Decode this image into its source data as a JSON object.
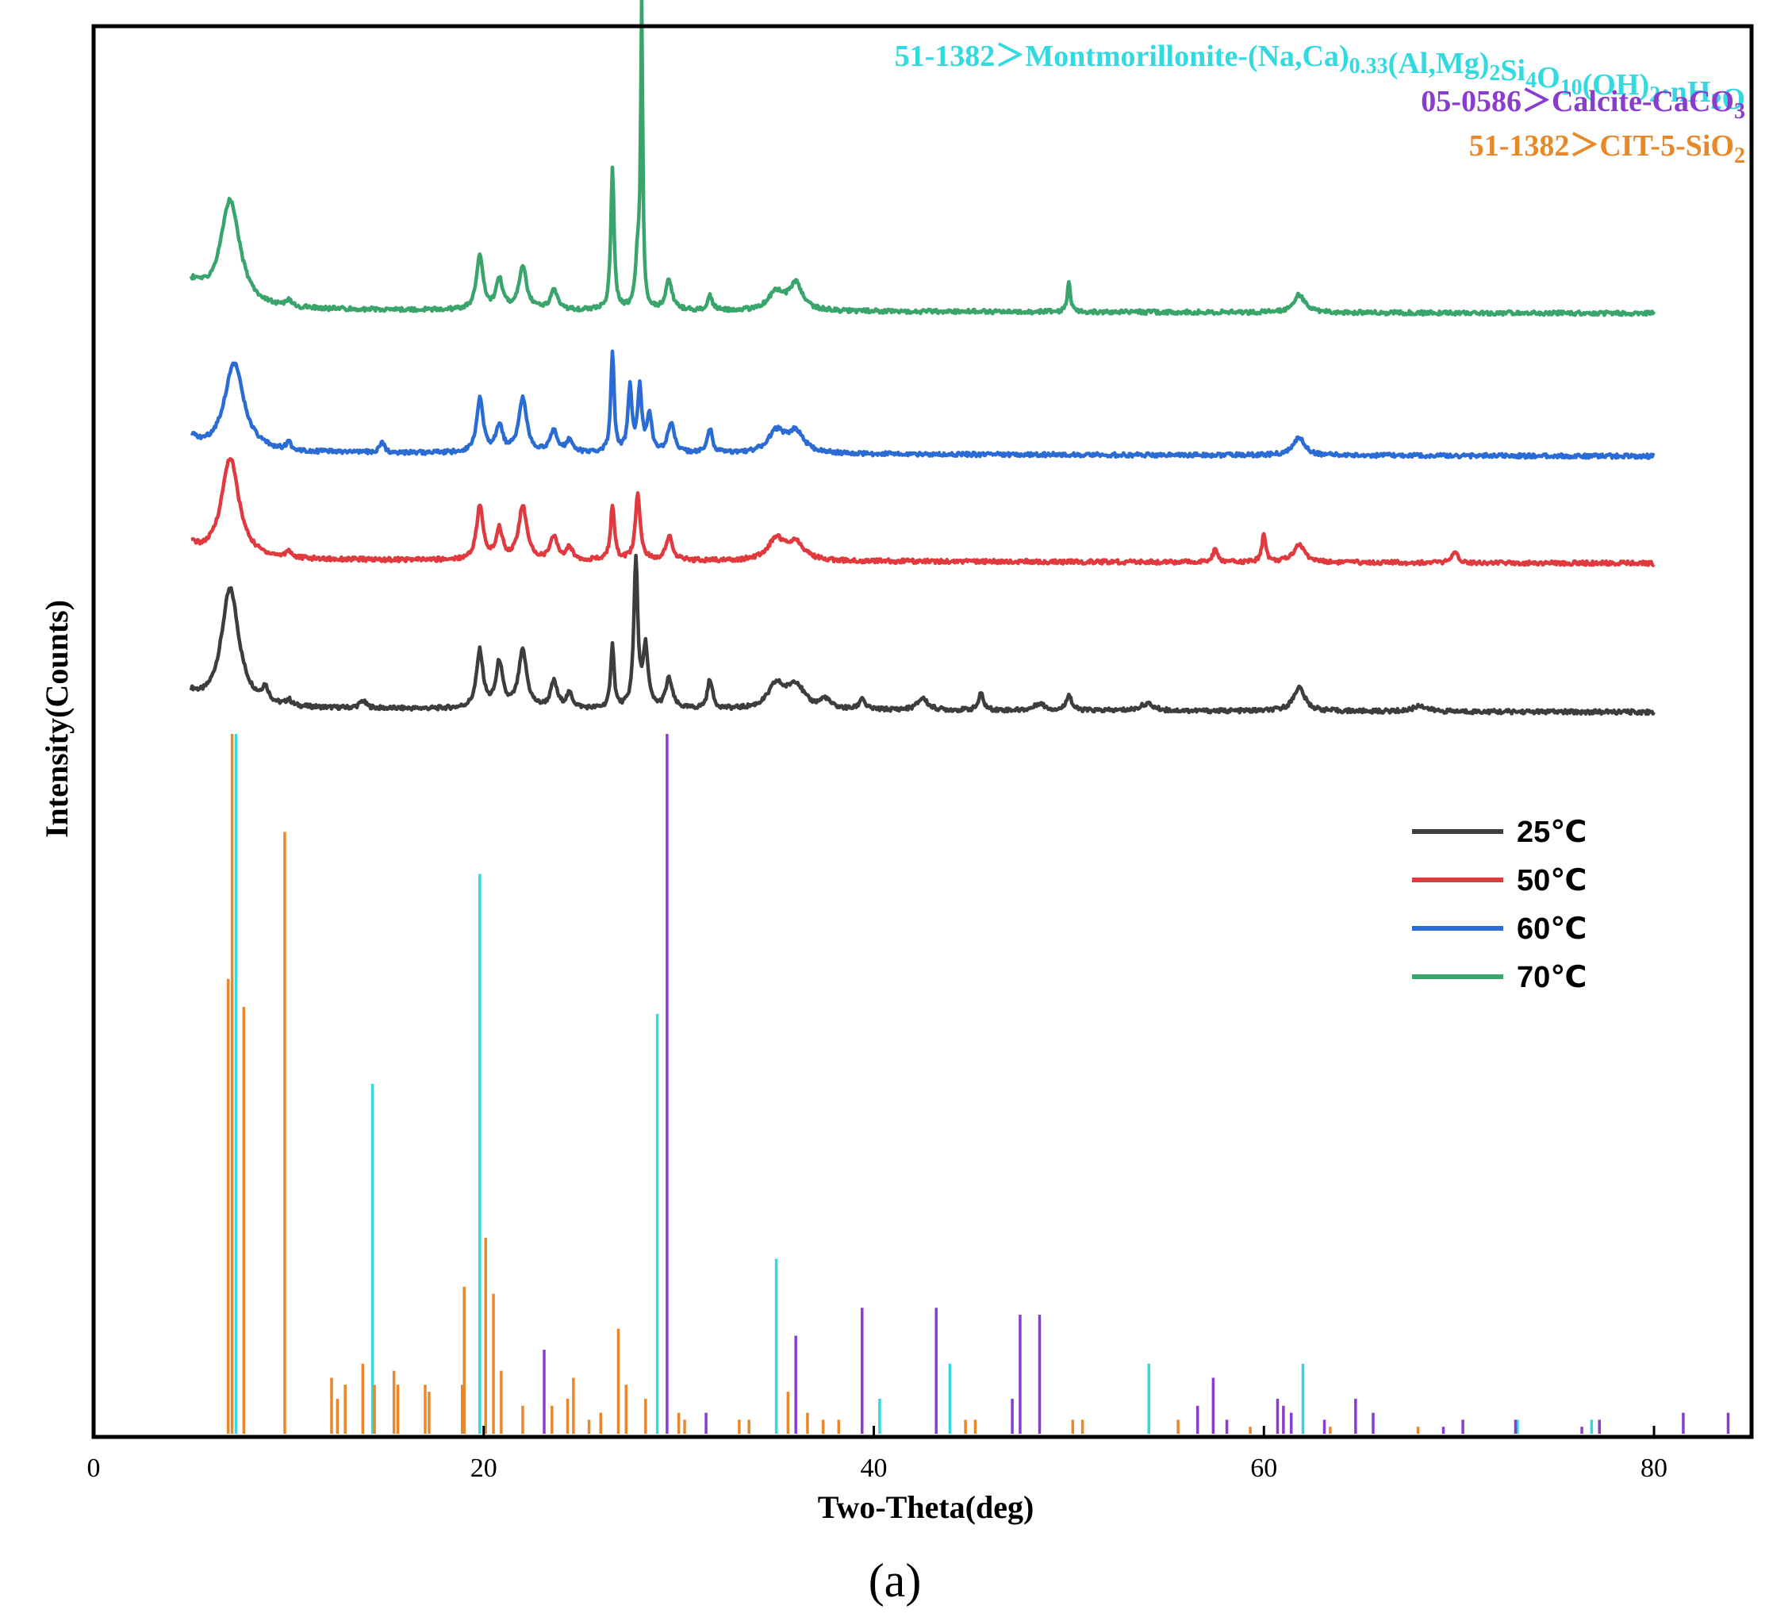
{
  "chart_data": {
    "type": "line",
    "xlabel": "Two-Theta(deg)",
    "ylabel": "Intensity(Counts)",
    "xlim": [
      0,
      85
    ],
    "x_ticks": [
      "0",
      "20",
      "40",
      "60",
      "80"
    ],
    "caption": "(a)",
    "grid": false,
    "legend_position": "middle-right",
    "series": [
      {
        "name": "25℃",
        "color": "#3d3d3d",
        "baseline": 0.0,
        "peaks": [
          [
            5.0,
            0.1,
            0.5
          ],
          [
            7.0,
            1.0,
            0.55
          ],
          [
            8.8,
            0.12,
            0.2
          ],
          [
            10.0,
            0.05,
            0.15
          ],
          [
            13.8,
            0.06,
            0.2
          ],
          [
            19.8,
            0.48,
            0.2
          ],
          [
            20.8,
            0.38,
            0.2
          ],
          [
            22.0,
            0.48,
            0.25
          ],
          [
            23.6,
            0.22,
            0.2
          ],
          [
            24.4,
            0.12,
            0.2
          ],
          [
            26.6,
            0.55,
            0.1
          ],
          [
            27.8,
            1.25,
            0.12
          ],
          [
            28.3,
            0.5,
            0.15
          ],
          [
            29.5,
            0.25,
            0.2
          ],
          [
            31.6,
            0.25,
            0.15
          ],
          [
            35.0,
            0.2,
            0.5
          ],
          [
            36.0,
            0.2,
            0.5
          ],
          [
            37.5,
            0.08,
            0.3
          ],
          [
            39.4,
            0.1,
            0.15
          ],
          [
            42.5,
            0.1,
            0.3
          ],
          [
            45.5,
            0.14,
            0.15
          ],
          [
            48.5,
            0.06,
            0.3
          ],
          [
            50.0,
            0.14,
            0.15
          ],
          [
            54.0,
            0.06,
            0.4
          ],
          [
            61.8,
            0.2,
            0.35
          ],
          [
            68.0,
            0.05,
            0.4
          ]
        ]
      },
      {
        "name": "50℃",
        "color": "#e0393e",
        "baseline": 1.25,
        "peaks": [
          [
            5.0,
            0.1,
            0.5
          ],
          [
            7.0,
            0.85,
            0.55
          ],
          [
            10.0,
            0.06,
            0.15
          ],
          [
            19.8,
            0.45,
            0.2
          ],
          [
            20.8,
            0.25,
            0.2
          ],
          [
            22.0,
            0.45,
            0.25
          ],
          [
            23.6,
            0.2,
            0.2
          ],
          [
            24.4,
            0.1,
            0.2
          ],
          [
            26.6,
            0.45,
            0.12
          ],
          [
            27.9,
            0.55,
            0.15
          ],
          [
            29.5,
            0.2,
            0.2
          ],
          [
            35.0,
            0.18,
            0.5
          ],
          [
            36.0,
            0.15,
            0.5
          ],
          [
            57.5,
            0.12,
            0.12
          ],
          [
            60.0,
            0.24,
            0.12
          ],
          [
            61.8,
            0.15,
            0.35
          ],
          [
            69.8,
            0.08,
            0.2
          ]
        ]
      },
      {
        "name": "60℃",
        "color": "#2b6bd4",
        "baseline": 2.15,
        "peaks": [
          [
            5.0,
            0.1,
            0.5
          ],
          [
            7.2,
            0.75,
            0.6
          ],
          [
            10.0,
            0.06,
            0.15
          ],
          [
            14.8,
            0.08,
            0.15
          ],
          [
            19.8,
            0.45,
            0.2
          ],
          [
            20.8,
            0.22,
            0.2
          ],
          [
            22.0,
            0.45,
            0.25
          ],
          [
            23.6,
            0.2,
            0.2
          ],
          [
            24.4,
            0.1,
            0.2
          ],
          [
            26.6,
            0.85,
            0.1
          ],
          [
            27.5,
            0.55,
            0.12
          ],
          [
            28.0,
            0.55,
            0.12
          ],
          [
            28.5,
            0.3,
            0.15
          ],
          [
            29.6,
            0.25,
            0.2
          ],
          [
            31.6,
            0.2,
            0.15
          ],
          [
            35.0,
            0.18,
            0.5
          ],
          [
            36.0,
            0.18,
            0.5
          ],
          [
            61.8,
            0.15,
            0.35
          ]
        ]
      },
      {
        "name": "70℃",
        "color": "#3aa56b",
        "baseline": 3.35,
        "peaks": [
          [
            5.0,
            0.2,
            0.8
          ],
          [
            7.0,
            0.9,
            0.6
          ],
          [
            10.0,
            0.05,
            0.15
          ],
          [
            19.8,
            0.45,
            0.2
          ],
          [
            20.8,
            0.25,
            0.2
          ],
          [
            22.0,
            0.35,
            0.25
          ],
          [
            23.6,
            0.18,
            0.2
          ],
          [
            26.6,
            1.2,
            0.1
          ],
          [
            27.9,
            0.45,
            0.15
          ],
          [
            28.1,
            2.5,
            0.06
          ],
          [
            29.5,
            0.25,
            0.2
          ],
          [
            31.6,
            0.12,
            0.15
          ],
          [
            35.0,
            0.15,
            0.5
          ],
          [
            36.0,
            0.22,
            0.4
          ],
          [
            50.0,
            0.25,
            0.1
          ],
          [
            61.8,
            0.15,
            0.35
          ]
        ]
      }
    ],
    "references": [
      {
        "name": "51-1382＞Montmorillonite-(Na,Ca)0.33(Al,Mg)2Si4O10(OH)2·nH2O",
        "color": "#33d9e0",
        "sticks": [
          [
            7.3,
            100
          ],
          [
            14.3,
            50
          ],
          [
            19.8,
            80
          ],
          [
            28.9,
            60
          ],
          [
            35.0,
            25
          ],
          [
            40.3,
            5
          ],
          [
            43.9,
            10
          ],
          [
            54.1,
            10
          ],
          [
            62.0,
            10
          ],
          [
            73.0,
            2
          ],
          [
            76.8,
            2
          ]
        ]
      },
      {
        "name": "05-0586＞Calcite-CaCO3",
        "color": "#8a3ccf",
        "sticks": [
          [
            23.1,
            12
          ],
          [
            29.4,
            100
          ],
          [
            31.4,
            3
          ],
          [
            36.0,
            14
          ],
          [
            39.4,
            18
          ],
          [
            43.2,
            18
          ],
          [
            47.1,
            5
          ],
          [
            47.5,
            17
          ],
          [
            48.5,
            17
          ],
          [
            56.6,
            4
          ],
          [
            57.4,
            8
          ],
          [
            58.1,
            2
          ],
          [
            60.7,
            5
          ],
          [
            61.0,
            4
          ],
          [
            61.4,
            3
          ],
          [
            63.1,
            2
          ],
          [
            64.7,
            5
          ],
          [
            65.6,
            3
          ],
          [
            69.2,
            1
          ],
          [
            70.2,
            2
          ],
          [
            72.9,
            2
          ],
          [
            76.3,
            1
          ],
          [
            77.2,
            2
          ],
          [
            81.5,
            3
          ],
          [
            83.8,
            3
          ]
        ]
      },
      {
        "name": "51-1382＞CIT-5-SiO2",
        "color": "#e8882a",
        "sticks": [
          [
            6.9,
            65
          ],
          [
            7.1,
            100
          ],
          [
            7.7,
            61
          ],
          [
            9.8,
            86
          ],
          [
            12.2,
            8
          ],
          [
            12.5,
            5
          ],
          [
            12.9,
            7
          ],
          [
            13.8,
            10
          ],
          [
            14.4,
            7
          ],
          [
            15.4,
            9
          ],
          [
            15.6,
            7
          ],
          [
            17.0,
            7
          ],
          [
            17.2,
            6
          ],
          [
            18.9,
            7
          ],
          [
            19.0,
            21
          ],
          [
            20.1,
            28
          ],
          [
            20.5,
            20
          ],
          [
            20.9,
            9
          ],
          [
            22.0,
            4
          ],
          [
            23.5,
            4
          ],
          [
            24.3,
            5
          ],
          [
            24.6,
            8
          ],
          [
            25.4,
            2
          ],
          [
            26.0,
            3
          ],
          [
            26.9,
            15
          ],
          [
            27.3,
            7
          ],
          [
            28.3,
            5
          ],
          [
            30.0,
            3
          ],
          [
            30.3,
            2
          ],
          [
            33.1,
            2
          ],
          [
            33.6,
            2
          ],
          [
            35.6,
            6
          ],
          [
            36.6,
            3
          ],
          [
            37.4,
            2
          ],
          [
            38.2,
            2
          ],
          [
            44.7,
            2
          ],
          [
            45.2,
            2
          ],
          [
            50.2,
            2
          ],
          [
            50.7,
            2
          ],
          [
            55.6,
            2
          ],
          [
            59.3,
            1
          ],
          [
            63.4,
            1
          ],
          [
            67.9,
            1
          ]
        ]
      }
    ]
  }
}
